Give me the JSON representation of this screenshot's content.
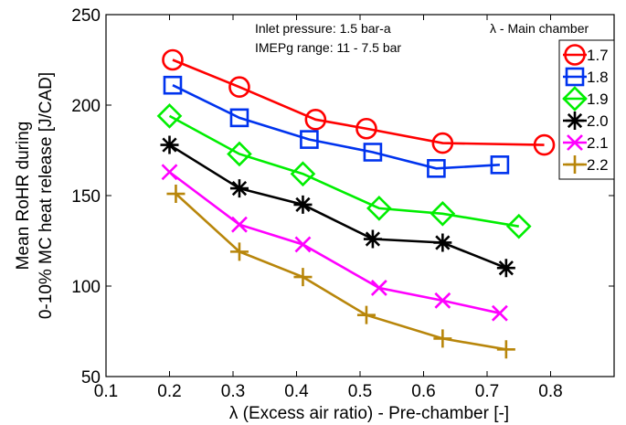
{
  "chart_data": {
    "type": "line",
    "title": "",
    "xlabel": "λ (Excess air ratio) - Pre-chamber [-]",
    "ylabel_lines": [
      "Mean RoHR during",
      "0-10% MC heat release [J/CAD]"
    ],
    "xlim": [
      0.1,
      0.9
    ],
    "ylim": [
      50,
      250
    ],
    "xticks": [
      0.1,
      0.2,
      0.3,
      0.4,
      0.5,
      0.6,
      0.7,
      0.8
    ],
    "yticks": [
      50,
      100,
      150,
      200,
      250
    ],
    "xtick_labels": [
      "0.1",
      "0.2",
      "0.3",
      "0.4",
      "0.5",
      "0.6",
      "0.7",
      "0.8"
    ],
    "ytick_labels": [
      "50",
      "100",
      "150",
      "200",
      "250"
    ],
    "grid": false,
    "legend_position": "top-right",
    "legend_title": "λ - Main chamber",
    "annotations": [
      "Inlet pressure: 1.5 bar-a",
      "IMEPg range: 11 - 7.5 bar"
    ],
    "series": [
      {
        "name": "1.7",
        "color": "#ff0000",
        "marker": "circle",
        "x": [
          0.205,
          0.31,
          0.43,
          0.51,
          0.63,
          0.79
        ],
        "y": [
          225,
          210,
          192,
          187,
          179,
          178
        ]
      },
      {
        "name": "1.8",
        "color": "#0033ee",
        "marker": "square",
        "x": [
          0.205,
          0.31,
          0.42,
          0.52,
          0.62,
          0.72
        ],
        "y": [
          211,
          193,
          181,
          174,
          165,
          167
        ]
      },
      {
        "name": "1.9",
        "color": "#00ee00",
        "marker": "diamond",
        "x": [
          0.2,
          0.31,
          0.41,
          0.53,
          0.63,
          0.75
        ],
        "y": [
          194,
          173,
          162,
          143,
          140,
          133
        ]
      },
      {
        "name": "2.0",
        "color": "#000000",
        "marker": "asterisk",
        "x": [
          0.2,
          0.31,
          0.41,
          0.52,
          0.63,
          0.73
        ],
        "y": [
          178,
          154,
          145,
          126,
          124,
          110
        ]
      },
      {
        "name": "2.1",
        "color": "#ff00ff",
        "marker": "x",
        "x": [
          0.2,
          0.31,
          0.41,
          0.53,
          0.63,
          0.72
        ],
        "y": [
          163,
          134,
          123,
          99,
          92,
          85
        ]
      },
      {
        "name": "2.2",
        "color": "#b8860b",
        "marker": "plus",
        "x": [
          0.21,
          0.31,
          0.41,
          0.51,
          0.63,
          0.73
        ],
        "y": [
          151,
          119,
          105,
          84,
          71,
          65
        ]
      }
    ]
  }
}
